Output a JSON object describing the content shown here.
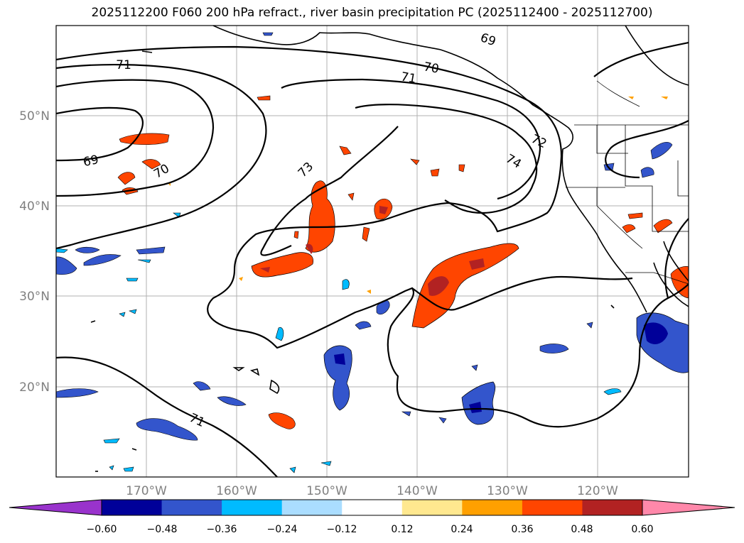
{
  "title": "2025112200 F060 200 hPa refract., river basin precipitation PC (2025112400 - 2025112700)",
  "lat_ticks": [
    "50°N",
    "40°N",
    "30°N",
    "20°N"
  ],
  "lon_ticks": [
    "170°W",
    "160°W",
    "150°W",
    "140°W",
    "130°W",
    "120°W"
  ],
  "contour_labels": [
    "69",
    "70",
    "71",
    "72",
    "73",
    "74",
    "69",
    "70",
    "71",
    "71"
  ],
  "colorbar": {
    "colors": [
      "#9933cc",
      "#000099",
      "#3355cc",
      "#00bbff",
      "#aaddff",
      "#ffffff",
      "#ffe88f",
      "#ffa000",
      "#ff4500",
      "#b22222",
      "#ff88aa"
    ],
    "ticks": [
      "−0.60",
      "−0.48",
      "−0.36",
      "−0.24",
      "−0.12",
      "0.12",
      "0.24",
      "0.36",
      "0.48",
      "0.60"
    ]
  },
  "chart_data": {
    "type": "map",
    "title": "2025112200 F060 200 hPa refract., river basin precipitation PC (2025112400 - 2025112700)",
    "lon_range": [
      -180,
      -110
    ],
    "lat_range": [
      10,
      60
    ],
    "contour_levels": [
      69,
      70,
      71,
      72,
      73,
      74
    ],
    "colorbar_levels": [
      -0.6,
      -0.48,
      -0.36,
      -0.24,
      -0.12,
      0.12,
      0.24,
      0.36,
      0.48,
      0.6
    ],
    "colorbar_extend": "both"
  }
}
